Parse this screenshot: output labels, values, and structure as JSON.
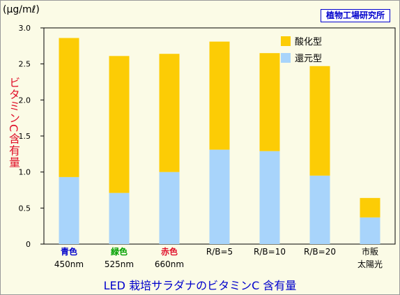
{
  "chart_data": {
    "type": "bar",
    "stacked": true,
    "unit_label": "(μg/mℓ)",
    "org_label": "植物工場研究所",
    "ylabel": "ビタミンC含有量",
    "xlabel": "LED 栽培サラダナのビタミンC 含有量",
    "ylim": [
      0,
      3.0
    ],
    "yticks": [
      "0",
      "0.5",
      "1.0",
      "1.5",
      "2.0",
      "2.5",
      "3.0"
    ],
    "grid": false,
    "legend_position": "top-right",
    "categories": [
      {
        "line1": "青色",
        "line2": "450nm",
        "line1_color": "#0000cc"
      },
      {
        "line1": "緑色",
        "line2": "525nm",
        "line1_color": "#00a000"
      },
      {
        "line1": "赤色",
        "line2": "660nm",
        "line1_color": "#e0102a"
      },
      {
        "line1": "R/B=5",
        "line2": "",
        "line1_color": "#000000"
      },
      {
        "line1": "R/B=10",
        "line2": "",
        "line1_color": "#000000"
      },
      {
        "line1": "R/B=20",
        "line2": "",
        "line1_color": "#000000"
      },
      {
        "line1": "市販",
        "line2": "太陽光",
        "line1_color": "#000000"
      }
    ],
    "series": [
      {
        "name": "還元型",
        "color": "#a8d4fb",
        "values": [
          0.93,
          0.71,
          1.0,
          1.31,
          1.29,
          0.95,
          0.37
        ]
      },
      {
        "name": "酸化型",
        "color": "#fccc05",
        "values": [
          1.93,
          1.9,
          1.64,
          1.5,
          1.36,
          1.52,
          0.27
        ]
      }
    ],
    "legend": [
      {
        "name": "酸化型",
        "color": "#fccc05"
      },
      {
        "name": "還元型",
        "color": "#a8d4fb"
      }
    ]
  }
}
